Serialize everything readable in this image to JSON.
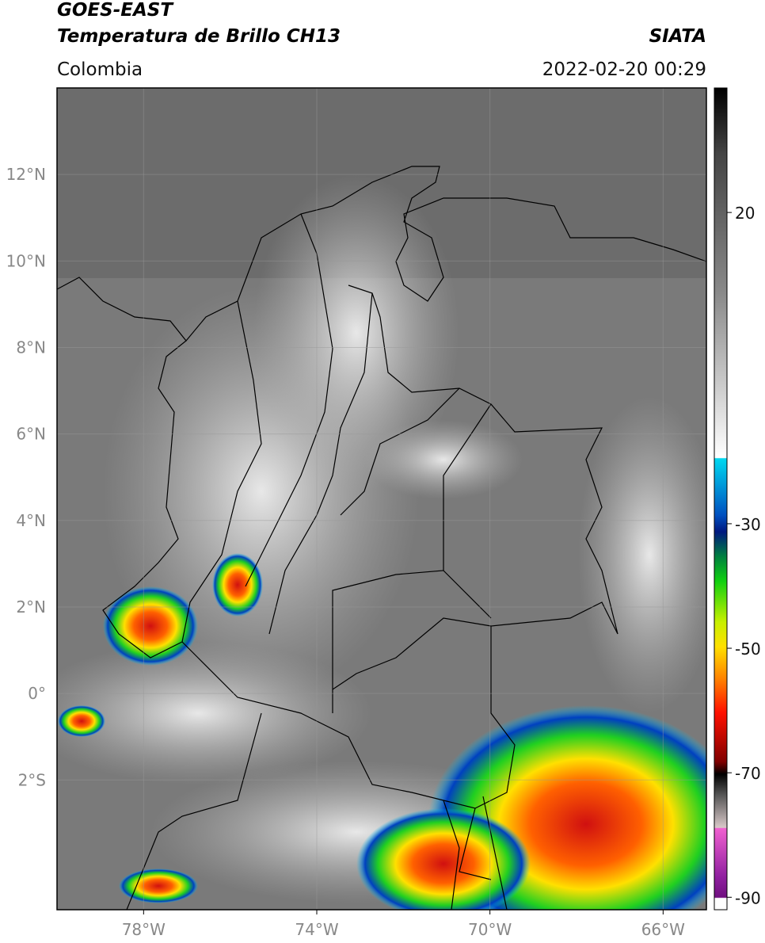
{
  "header": {
    "satellite": "GOES-EAST",
    "product": "Temperatura de Brillo CH13",
    "source": "SIATA",
    "region": "Colombia",
    "datetime": "2022-02-20 00:29"
  },
  "map": {
    "lonlim": [
      -80,
      -65
    ],
    "latlim": [
      -5,
      14
    ],
    "lat_ticks": [
      {
        "value": 12,
        "label": "12°N"
      },
      {
        "value": 10,
        "label": "10°N"
      },
      {
        "value": 8,
        "label": "8°N"
      },
      {
        "value": 6,
        "label": "6°N"
      },
      {
        "value": 4,
        "label": "4°N"
      },
      {
        "value": 2,
        "label": "2°N"
      },
      {
        "value": 0,
        "label": "0°"
      },
      {
        "value": -2,
        "label": "2°S"
      }
    ],
    "lon_ticks": [
      {
        "value": -78,
        "label": "78°W"
      },
      {
        "value": -74,
        "label": "74°W"
      },
      {
        "value": -70,
        "label": "70°W"
      },
      {
        "value": -66,
        "label": "66°W"
      }
    ]
  },
  "colorbar": {
    "lim": [
      -92,
      40
    ],
    "ticks": [
      20,
      -30,
      -50,
      -70,
      -90
    ]
  }
}
